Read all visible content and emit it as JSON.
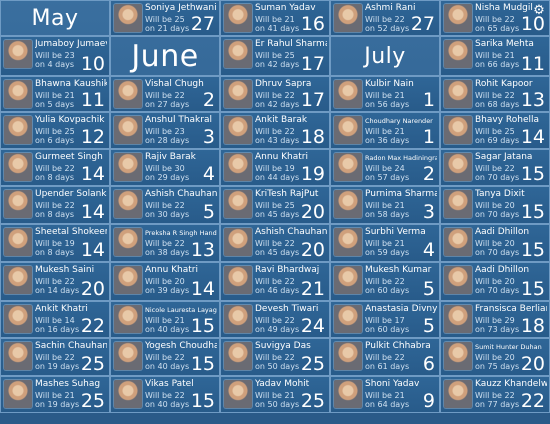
{
  "months": {
    "may": "May",
    "june": "June",
    "july": "July"
  },
  "cards": {
    "c0_0": {
      "name": "Soniya Jethwani",
      "will": "Will be 25",
      "days": "on 21 days",
      "num": "27"
    },
    "c0_1": {
      "name": "Suman Yadav",
      "will": "Will be 21",
      "days": "on 41 days",
      "num": "16"
    },
    "c0_2": {
      "name": "Ashmi Rani",
      "will": "Will be 22",
      "days": "on 52 days",
      "num": "27"
    },
    "c0_3": {
      "name": "Nisha Mudgil",
      "will": "Will be 22",
      "days": "on 65 days",
      "num": "10"
    },
    "c1_0": {
      "name": "Jumaboy Jumaev",
      "will": "Will be 23",
      "days": "on 4 days",
      "num": "10"
    },
    "c1_2": {
      "name": "Er Rahul Sharma",
      "will": "Will be 25",
      "days": "on 42 days",
      "num": "17"
    },
    "c1_4": {
      "name": "Sarika Mehta",
      "will": "Will be 21",
      "days": "on 66 days",
      "num": "11"
    },
    "c2_0": {
      "name": "Bhawna Kaushik",
      "will": "Will be 21",
      "days": "on 5 days",
      "num": "11"
    },
    "c2_1": {
      "name": "Vishal Chugh",
      "will": "Will be 22",
      "days": "on 27 days",
      "num": "2"
    },
    "c2_2": {
      "name": "Dhruv Sapra",
      "will": "Will be 22",
      "days": "on 42 days",
      "num": "17"
    },
    "c2_3": {
      "name": "Kulbir Nain",
      "will": "Will be 21",
      "days": "on 56 days",
      "num": "1"
    },
    "c2_4": {
      "name": "Rohit Kapoor",
      "will": "Will be 22",
      "days": "on 68 days",
      "num": "13"
    },
    "c3_0": {
      "name": "Yulia Kovpachik",
      "will": "Will be 25",
      "days": "on 6 days",
      "num": "12"
    },
    "c3_1": {
      "name": "Anshul Thakral",
      "will": "Will be 23",
      "days": "on 28 days",
      "num": "3"
    },
    "c3_2": {
      "name": "Ankit Barak",
      "will": "Will be 22",
      "days": "on 43 days",
      "num": "18"
    },
    "c3_3": {
      "name": "Choudhary Narender",
      "will": "Will be 21",
      "days": "on 36 days",
      "num": "1"
    },
    "c3_4": {
      "name": "Bhavy Rohella",
      "will": "Will be 25",
      "days": "on 69 days",
      "num": "14"
    },
    "c4_0": {
      "name": "Gurmeet Singh",
      "will": "Will be 22",
      "days": "on 8 days",
      "num": "14"
    },
    "c4_1": {
      "name": "Rajiv Barak",
      "will": "Will be 30",
      "days": "on 29 days",
      "num": "4"
    },
    "c4_2": {
      "name": "Annu Khatri",
      "will": "Will be 19",
      "days": "on 44 days",
      "num": "19"
    },
    "c4_3": {
      "name": "Radon Max Hadiningrat",
      "will": "Will be 24",
      "days": "on 57 days",
      "num": "2"
    },
    "c4_4": {
      "name": "Sagar Jatana",
      "will": "Will be 22",
      "days": "on 70 days",
      "num": "15"
    },
    "c5_0": {
      "name": "Upender Solanki",
      "will": "Will be 22",
      "days": "on 8 days",
      "num": "14"
    },
    "c5_1": {
      "name": "Ashish Chauhan",
      "will": "Will be 22",
      "days": "on 30 days",
      "num": "5"
    },
    "c5_2": {
      "name": "KriTesh RajPut",
      "will": "Will be 25",
      "days": "on 45 days",
      "num": "20"
    },
    "c5_3": {
      "name": "Purnima Sharma",
      "will": "Will be 21",
      "days": "on 58 days",
      "num": "3"
    },
    "c5_4": {
      "name": "Tanya Dixit",
      "will": "Will be 20",
      "days": "on 70 days",
      "num": "15"
    },
    "c6_0": {
      "name": "Sheetal Shokeen",
      "will": "Will be 19",
      "days": "on 8 days",
      "num": "14"
    },
    "c6_1": {
      "name": "Preksha R Singh Handa",
      "will": "Will be 22",
      "days": "on 38 days",
      "num": "13"
    },
    "c6_2": {
      "name": "Ashish Chauhan",
      "will": "Will be 22",
      "days": "on 45 days",
      "num": "20"
    },
    "c6_3": {
      "name": "Surbhi Verma",
      "will": "Will be 21",
      "days": "on 59 days",
      "num": "4"
    },
    "c6_4": {
      "name": "Aadi Dhillon",
      "will": "Will be 20",
      "days": "on 70 days",
      "num": "15"
    },
    "c7_0": {
      "name": "Mukesh Saini",
      "will": "Will be 22",
      "days": "on 14 days",
      "num": "20"
    },
    "c7_1": {
      "name": "Annu Khatri",
      "will": "Will be 20",
      "days": "on 39 days",
      "num": "14"
    },
    "c7_2": {
      "name": "Ravi Bhardwaj",
      "will": "Will be 22",
      "days": "on 46 days",
      "num": "21"
    },
    "c7_3": {
      "name": "Mukesh Kumar",
      "will": "Will be 22",
      "days": "on 60 days",
      "num": "5"
    },
    "c7_4": {
      "name": "Aadi Dhillon",
      "will": "Will be 20",
      "days": "on 70 days",
      "num": "15"
    },
    "c8_0": {
      "name": "Ankit Khatri",
      "will": "Will be 14",
      "days": "on 16 days",
      "num": "22"
    },
    "c8_1": {
      "name": "Nicole Lauresta Layag",
      "will": "Will be 21",
      "days": "on 40 days",
      "num": "15"
    },
    "c8_2": {
      "name": "Devesh Tiwari",
      "will": "Will be 22",
      "days": "on 49 days",
      "num": "24"
    },
    "c8_3": {
      "name": "Anastasia Divnych",
      "will": "Will be 17",
      "days": "on 60 days",
      "num": "5"
    },
    "c8_4": {
      "name": "Fransisca Berliana",
      "will": "Will be 29",
      "days": "on 73 days",
      "num": "18"
    },
    "c9_0": {
      "name": "Sachin Chauhan",
      "will": "Will be 22",
      "days": "on 19 days",
      "num": "25"
    },
    "c9_1": {
      "name": "Yogesh Choudhary",
      "will": "Will be 22",
      "days": "on 40 days",
      "num": "15"
    },
    "c9_2": {
      "name": "Suvigya Das",
      "will": "Will be 22",
      "days": "on 50 days",
      "num": "25"
    },
    "c9_3": {
      "name": "Pulkit Chhabra",
      "will": "Will be 22",
      "days": "on 61 days",
      "num": "6"
    },
    "c9_4": {
      "name": "Sumit Hunter Duhan",
      "will": "Will be 20",
      "days": "on 75 days",
      "num": "20"
    },
    "c10_0": {
      "name": "Mashes Suhag",
      "will": "Will be 21",
      "days": "on 19 days",
      "num": "25"
    },
    "c10_1": {
      "name": "Vikas Patel",
      "will": "Will be 22",
      "days": "on 40 days",
      "num": "15"
    },
    "c10_2": {
      "name": "Yadav Mohit",
      "will": "Will be 21",
      "days": "on 50 days",
      "num": "25"
    },
    "c10_3": {
      "name": "Shoni Yadav",
      "will": "Will be 21",
      "days": "on 64 days",
      "num": "9"
    },
    "c10_4": {
      "name": "Kauzz Khandelwal",
      "will": "Will be 22",
      "days": "on 77 days",
      "num": "22"
    }
  },
  "icons": {
    "settings": "gear-icon"
  }
}
